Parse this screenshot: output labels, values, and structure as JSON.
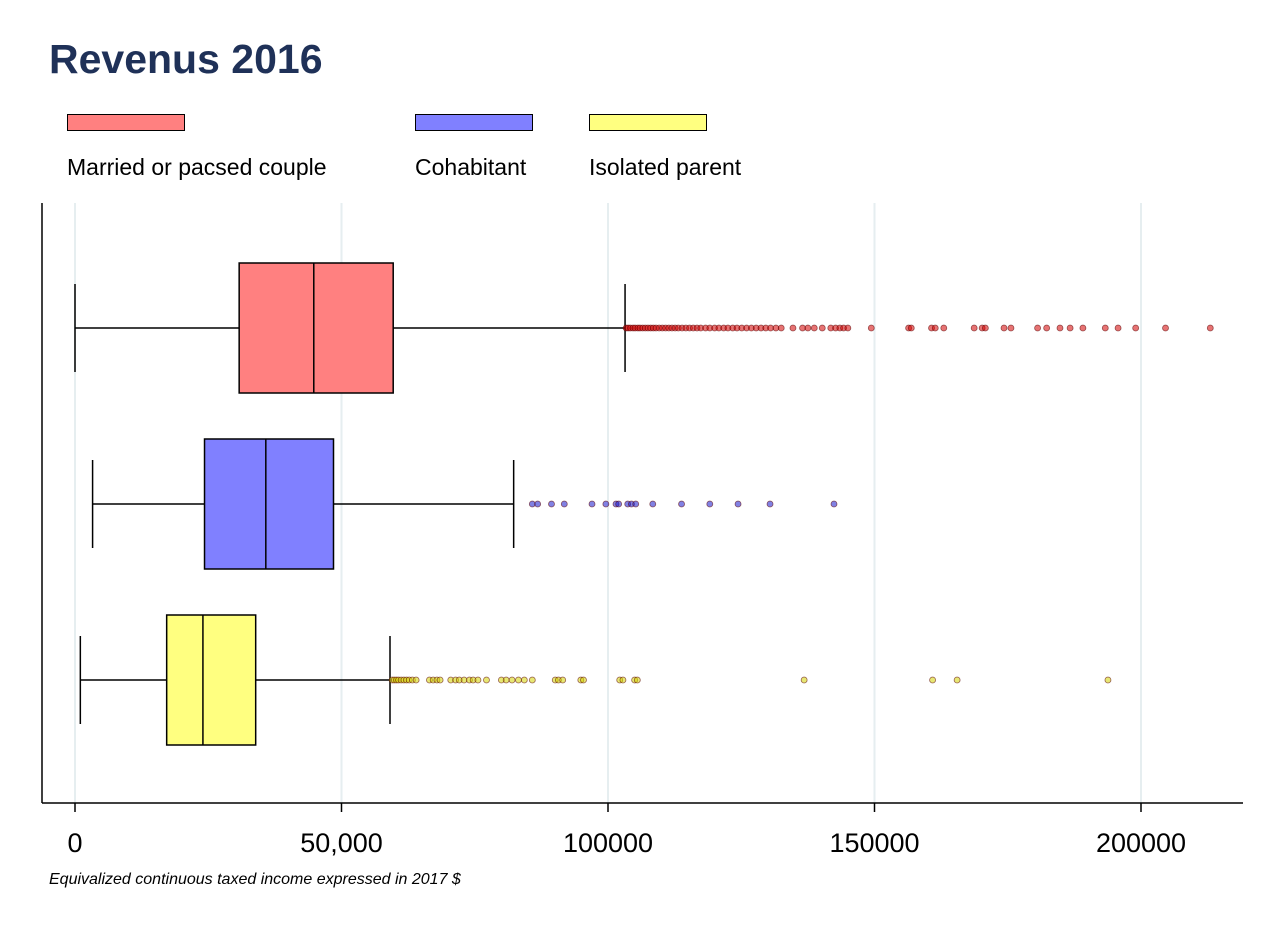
{
  "chart_data": {
    "type": "boxplot",
    "orientation": "horizontal",
    "title": "Revenus 2016",
    "xlabel": "Equivalized continuous taxed income expressed in 2017 $",
    "xlim": [
      -6000,
      220000
    ],
    "xticks": [
      {
        "value": 0,
        "label": "0"
      },
      {
        "value": 50000,
        "label": "50,000"
      },
      {
        "value": 100000,
        "label": "100000"
      },
      {
        "value": 150000,
        "label": "150000"
      },
      {
        "value": 200000,
        "label": "200000"
      }
    ],
    "grid": "vertical",
    "legend_position": "top",
    "series": [
      {
        "name": "Married or pacsed couple",
        "fill": "#ff8080",
        "outlier_fill": "#d40000",
        "whisker_low": 0,
        "q1": 30800,
        "median": 44800,
        "q3": 59700,
        "whisker_high": 103200,
        "outliers": [
          103400,
          103800,
          104200,
          104700,
          105100,
          105600,
          106000,
          106500,
          107000,
          107500,
          108000,
          108500,
          109000,
          109600,
          110200,
          110800,
          111400,
          112000,
          112600,
          113200,
          113900,
          114600,
          115300,
          116000,
          116700,
          117400,
          118300,
          119100,
          120000,
          120800,
          121700,
          122500,
          123400,
          124200,
          125100,
          126000,
          126900,
          127800,
          128700,
          129600,
          130500,
          131500,
          132500,
          134700,
          136500,
          137500,
          138700,
          140200,
          141800,
          142700,
          143500,
          144200,
          145000,
          149400,
          156400,
          156900,
          160700,
          161400,
          163000,
          168700,
          170200,
          170800,
          174300,
          175600,
          180600,
          182300,
          184800,
          186700,
          189100,
          193300,
          195700,
          199000,
          204600,
          213000
        ]
      },
      {
        "name": "Cohabitant",
        "fill": "#8080ff",
        "outlier_fill": "#1a1acc",
        "whisker_low": 3300,
        "q1": 24300,
        "median": 35800,
        "q3": 48500,
        "whisker_high": 82300,
        "outliers": [
          85800,
          86800,
          89400,
          91800,
          97000,
          99600,
          101500,
          102000,
          103700,
          104400,
          105200,
          108400,
          113800,
          119100,
          124400,
          130400,
          142400
        ]
      },
      {
        "name": "Isolated parent",
        "fill": "#ffff80",
        "outlier_fill": "#d4d400",
        "whisker_low": 1000,
        "q1": 17200,
        "median": 24000,
        "q3": 33900,
        "whisker_high": 59100,
        "outliers": [
          59500,
          59900,
          60300,
          60700,
          61200,
          61700,
          62200,
          62700,
          63300,
          64000,
          66500,
          67200,
          67900,
          68500,
          70500,
          71400,
          72100,
          73000,
          74000,
          74700,
          75600,
          77200,
          80000,
          80900,
          82000,
          83200,
          84300,
          85800,
          90100,
          90700,
          91500,
          94900,
          95400,
          102200,
          102800,
          105000,
          105500,
          136800,
          160900,
          165500,
          193800
        ]
      }
    ]
  }
}
